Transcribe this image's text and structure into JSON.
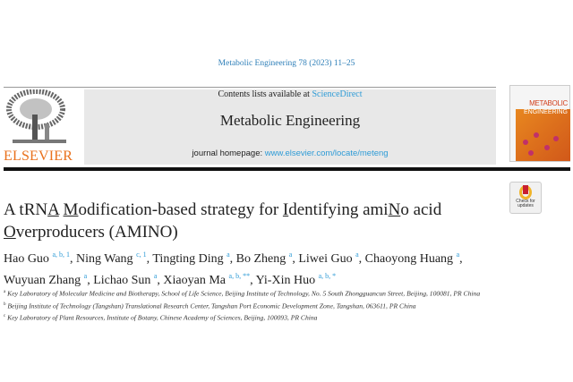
{
  "journal_ref": "Metabolic Engineering 78 (2023) 11–25",
  "header": {
    "contents_prefix": "Contents lists available at ",
    "contents_link": "ScienceDirect",
    "journal_title": "Metabolic Engineering",
    "homepage_prefix": "journal homepage: ",
    "homepage_link": "www.elsevier.com/locate/meteng",
    "publisher": "ELSEVIER",
    "cover_title_1": "METABOLIC",
    "cover_title_2": "ENGINEERING"
  },
  "check_updates": "Check for updates",
  "title": {
    "segments": [
      "A tRN",
      "A",
      " ",
      "M",
      "odification-based strategy for ",
      "I",
      "dentifying ami",
      "N",
      "o acid ",
      "O",
      "verproducers (AMINO)"
    ]
  },
  "authors": [
    {
      "name": "Hao Guo",
      "sup": "a, b, 1"
    },
    {
      "name": "Ning Wang",
      "sup": "c, 1"
    },
    {
      "name": "Tingting Ding",
      "sup": "a"
    },
    {
      "name": "Bo Zheng",
      "sup": "a"
    },
    {
      "name": "Liwei Guo",
      "sup": "a"
    },
    {
      "name": "Chaoyong Huang",
      "sup": "a"
    },
    {
      "name": "Wuyuan Zhang",
      "sup": "a"
    },
    {
      "name": "Lichao Sun",
      "sup": "a"
    },
    {
      "name": "Xiaoyan Ma",
      "sup": "a, b, **"
    },
    {
      "name": "Yi-Xin Huo",
      "sup": "a, b, *"
    }
  ],
  "affiliations": [
    {
      "key": "a",
      "text": "Key Laboratory of Molecular Medicine and Biotherapy, School of Life Science, Beijing Institute of Technology, No. 5 South Zhongguancun Street, Beijing, 100081, PR China"
    },
    {
      "key": "b",
      "text": "Beijing Institute of Technology (Tangshan) Translational Research Center, Tangshan Port Economic Development Zone, Tangshan, 063611, PR China"
    },
    {
      "key": "c",
      "text": "Key Laboratory of Plant Resources, Institute of Botany, Chinese Academy of Sciences, Beijing, 100093, PR China"
    }
  ],
  "colors": {
    "link": "#2e9bd6",
    "elsevier": "#e9711c",
    "band": "#e8e8e8"
  }
}
